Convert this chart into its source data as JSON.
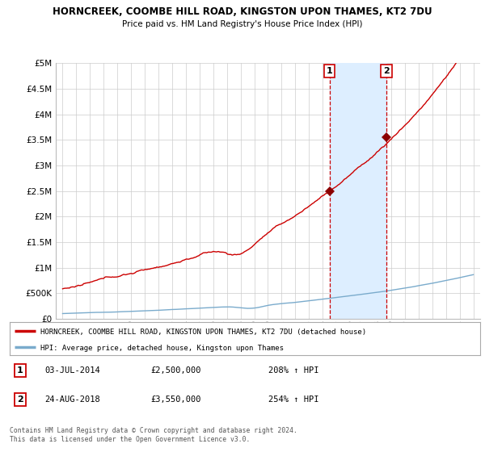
{
  "title1": "HORNCREEK, COOMBE HILL ROAD, KINGSTON UPON THAMES, KT2 7DU",
  "title2": "Price paid vs. HM Land Registry's House Price Index (HPI)",
  "background_color": "#ffffff",
  "plot_bg_color": "#ffffff",
  "grid_color": "#cccccc",
  "ylim": [
    0,
    5000000
  ],
  "yticks": [
    0,
    500000,
    1000000,
    1500000,
    2000000,
    2500000,
    3000000,
    3500000,
    4000000,
    4500000,
    5000000
  ],
  "ytick_labels": [
    "£0",
    "£500K",
    "£1M",
    "£1.5M",
    "£2M",
    "£2.5M",
    "£3M",
    "£3.5M",
    "£4M",
    "£4.5M",
    "£5M"
  ],
  "xlim_start": 1994.5,
  "xlim_end": 2025.5,
  "sale1_x": 2014.5,
  "sale1_y": 2500000,
  "sale2_x": 2018.65,
  "sale2_y": 3550000,
  "sale1_date": "03-JUL-2014",
  "sale1_price": "£2,500,000",
  "sale1_hpi": "208% ↑ HPI",
  "sale2_date": "24-AUG-2018",
  "sale2_price": "£3,550,000",
  "sale2_hpi": "254% ↑ HPI",
  "red_line_color": "#cc0000",
  "blue_line_color": "#7aabcc",
  "sale_dot_color": "#8b0000",
  "vline_color": "#cc0000",
  "highlight_color": "#ddeeff",
  "legend_label1": "HORNCREEK, COOMBE HILL ROAD, KINGSTON UPON THAMES, KT2 7DU (detached house)",
  "legend_label2": "HPI: Average price, detached house, Kingston upon Thames",
  "footer": "Contains HM Land Registry data © Crown copyright and database right 2024.\nThis data is licensed under the Open Government Licence v3.0."
}
